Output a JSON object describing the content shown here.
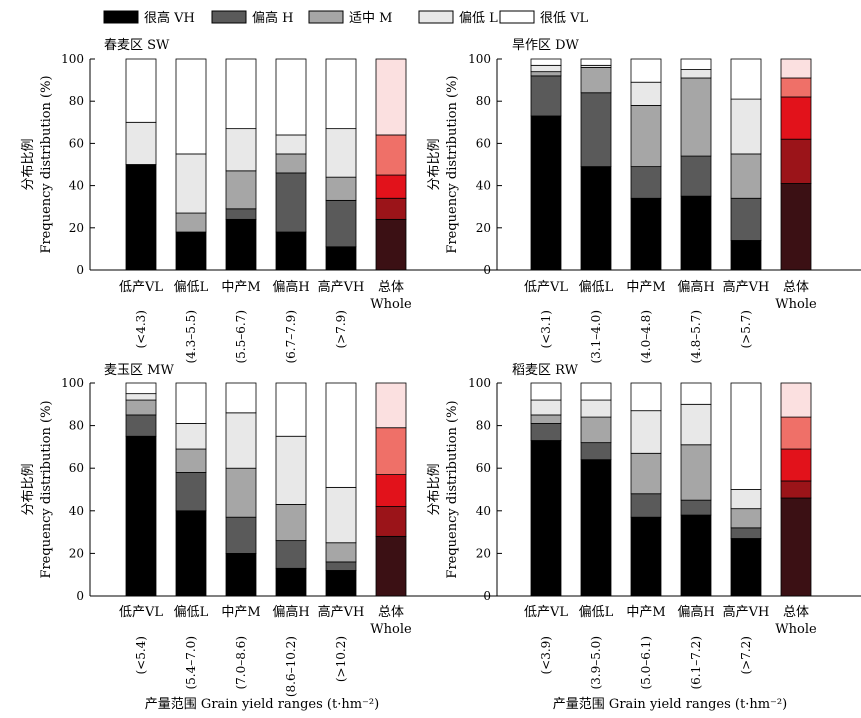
{
  "legend": [
    {
      "label": "很高 VH",
      "color": "#000000"
    },
    {
      "label": "偏高 H",
      "color": "#5a5a5a"
    },
    {
      "label": "适中 M",
      "color": "#a6a6a6"
    },
    {
      "label": "偏低 L",
      "color": "#e8e8e8"
    },
    {
      "label": "很低 VL",
      "color": "#ffffff"
    }
  ],
  "whole_colors": [
    "#3b1014",
    "#9b1419",
    "#e2121b",
    "#ef7068",
    "#fbe0e0"
  ],
  "y_axis": {
    "title_cn": "分布比例",
    "title_en": "Frequency distribution (%)"
  },
  "x_axis_title": "产量范围 Grain yield ranges (t·hm⁻²)",
  "chart_data": [
    {
      "type": "bar",
      "stacked": true,
      "title": "春麦区 SW",
      "categories": [
        "低产VL",
        "偏低L",
        "中产M",
        "偏高H",
        "高产VH",
        "总体"
      ],
      "categories_sub": [
        "",
        "",
        "",
        "",
        "",
        "Whole"
      ],
      "ranges": [
        "(<4.3)",
        "(4.3–5.5)",
        "(5.5–6.7)",
        "(6.7–7.9)",
        "(>7.9)",
        ""
      ],
      "ylim": [
        0,
        100
      ],
      "yticks": [
        0,
        20,
        40,
        60,
        80,
        100
      ],
      "series": [
        {
          "name": "很高 VH",
          "values": [
            50,
            18,
            24,
            18,
            11,
            24
          ]
        },
        {
          "name": "偏高 H",
          "values": [
            0,
            0,
            5,
            28,
            22,
            10
          ]
        },
        {
          "name": "适中 M",
          "values": [
            0,
            9,
            18,
            9,
            11,
            11
          ]
        },
        {
          "name": "偏低 L",
          "values": [
            20,
            28,
            20,
            9,
            23,
            19
          ]
        },
        {
          "name": "很低 VL",
          "values": [
            30,
            45,
            33,
            36,
            33,
            36
          ]
        }
      ]
    },
    {
      "type": "bar",
      "stacked": true,
      "title": "旱作区 DW",
      "categories": [
        "低产VL",
        "偏低L",
        "中产M",
        "偏高H",
        "高产VH",
        "总体"
      ],
      "categories_sub": [
        "",
        "",
        "",
        "",
        "",
        "Whole"
      ],
      "ranges": [
        "(<3.1)",
        "(3.1–4.0)",
        "(4.0–4.8)",
        "(4.8–5.7)",
        "(>5.7)",
        ""
      ],
      "ylim": [
        0,
        100
      ],
      "yticks": [
        0,
        20,
        40,
        60,
        80,
        100
      ],
      "series": [
        {
          "name": "很高 VH",
          "values": [
            73,
            49,
            34,
            35,
            14,
            41
          ]
        },
        {
          "name": "偏高 H",
          "values": [
            19,
            35,
            15,
            19,
            20,
            21
          ]
        },
        {
          "name": "适中 M",
          "values": [
            2,
            12,
            29,
            37,
            21,
            20
          ]
        },
        {
          "name": "偏低 L",
          "values": [
            3,
            1,
            11,
            4,
            26,
            9
          ]
        },
        {
          "name": "很低 VL",
          "values": [
            3,
            3,
            11,
            5,
            19,
            9
          ]
        }
      ]
    },
    {
      "type": "bar",
      "stacked": true,
      "title": "麦玉区 MW",
      "categories": [
        "低产VL",
        "偏低L",
        "中产M",
        "偏高H",
        "高产VH",
        "总体"
      ],
      "categories_sub": [
        "",
        "",
        "",
        "",
        "",
        "Whole"
      ],
      "ranges": [
        "(<5.4)",
        "(5.4–7.0)",
        "(7.0–8.6)",
        "(8.6–10.2)",
        "(>10.2)",
        ""
      ],
      "ylim": [
        0,
        100
      ],
      "yticks": [
        0,
        20,
        40,
        60,
        80,
        100
      ],
      "series": [
        {
          "name": "很高 VH",
          "values": [
            75,
            40,
            20,
            13,
            12,
            28
          ]
        },
        {
          "name": "偏高 H",
          "values": [
            10,
            18,
            17,
            13,
            4,
            14
          ]
        },
        {
          "name": "适中 M",
          "values": [
            7,
            11,
            23,
            17,
            9,
            15
          ]
        },
        {
          "name": "偏低 L",
          "values": [
            3,
            12,
            26,
            32,
            26,
            22
          ]
        },
        {
          "name": "很低 VL",
          "values": [
            5,
            19,
            14,
            25,
            49,
            21
          ]
        }
      ]
    },
    {
      "type": "bar",
      "stacked": true,
      "title": "稻麦区 RW",
      "categories": [
        "低产VL",
        "偏低L",
        "中产M",
        "偏高H",
        "高产VH",
        "总体"
      ],
      "categories_sub": [
        "",
        "",
        "",
        "",
        "",
        "Whole"
      ],
      "ranges": [
        "(<3.9)",
        "(3.9–5.0)",
        "(5.0–6.1)",
        "(6.1–7.2)",
        "(>7.2)",
        ""
      ],
      "ylim": [
        0,
        100
      ],
      "yticks": [
        0,
        20,
        40,
        60,
        80,
        100
      ],
      "series": [
        {
          "name": "很高 VH",
          "values": [
            73,
            64,
            37,
            38,
            27,
            46
          ]
        },
        {
          "name": "偏高 H",
          "values": [
            8,
            8,
            11,
            7,
            5,
            8
          ]
        },
        {
          "name": "适中 M",
          "values": [
            4,
            12,
            19,
            26,
            9,
            15
          ]
        },
        {
          "name": "偏低 L",
          "values": [
            7,
            8,
            20,
            19,
            9,
            15
          ]
        },
        {
          "name": "很低 VL",
          "values": [
            8,
            8,
            13,
            10,
            50,
            16
          ]
        }
      ]
    }
  ]
}
